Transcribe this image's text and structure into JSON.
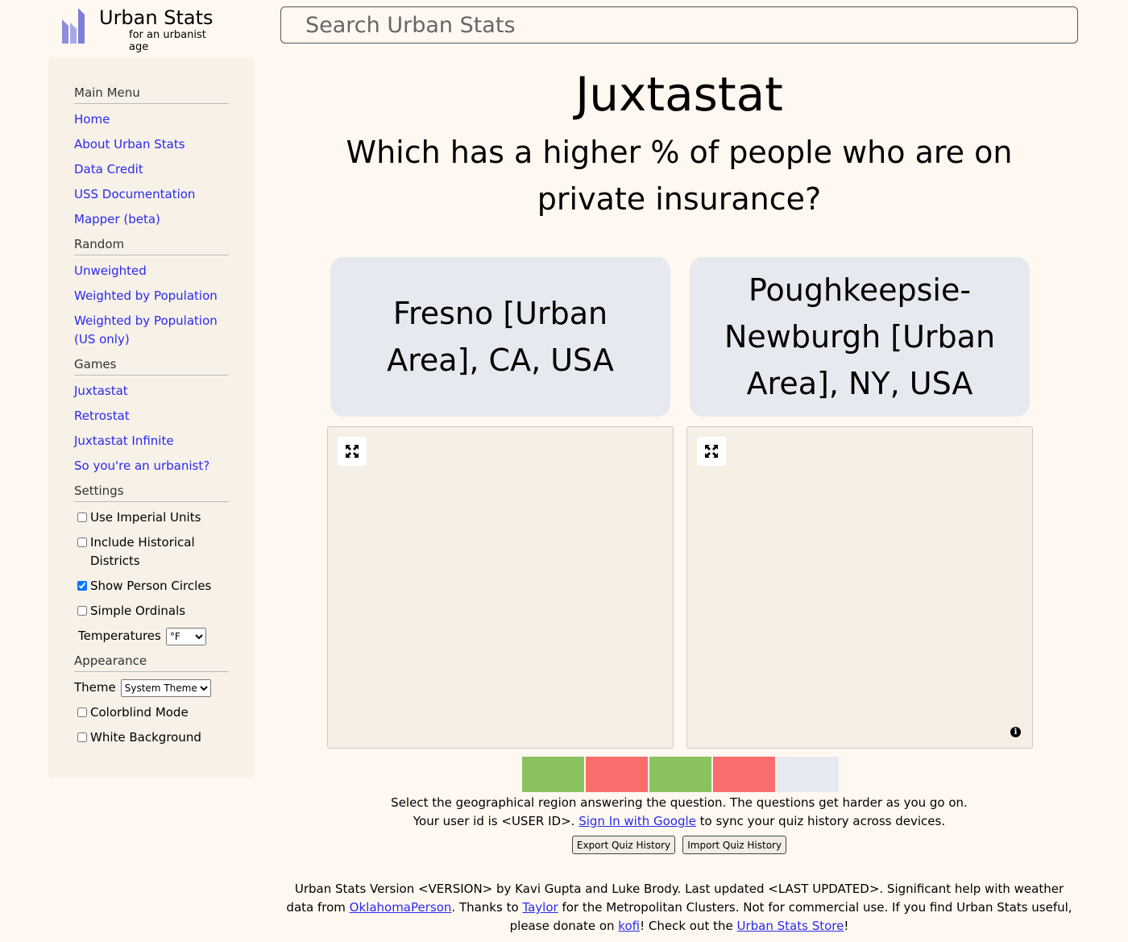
{
  "header": {
    "logo_title": "Urban Stats",
    "logo_subtitle": "for an urbanist age",
    "search_placeholder": "Search Urban Stats"
  },
  "sidebar": {
    "main_menu": {
      "heading": "Main Menu",
      "items": [
        "Home",
        "About Urban Stats",
        "Data Credit",
        "USS Documentation",
        "Mapper (beta)"
      ]
    },
    "random": {
      "heading": "Random",
      "items": [
        "Unweighted",
        "Weighted by Population",
        "Weighted by Population (US only)"
      ]
    },
    "games": {
      "heading": "Games",
      "items": [
        "Juxtastat",
        "Retrostat",
        "Juxtastat Infinite",
        "So you're an urbanist?"
      ]
    },
    "settings": {
      "heading": "Settings",
      "imperial": "Use Imperial Units",
      "historical": "Include Historical Districts",
      "person_circles": "Show Person Circles",
      "simple_ordinals": "Simple Ordinals",
      "temperatures_label": "Temperatures",
      "temperatures_value": "°F"
    },
    "appearance": {
      "heading": "Appearance",
      "theme_label": "Theme",
      "theme_value": "System Theme",
      "colorblind": "Colorblind Mode",
      "white_bg": "White Background"
    }
  },
  "main": {
    "title": "Juxtastat",
    "question": "Which has a higher % of people who are on private insurance?",
    "choice_a": "Fresno [Urban Area], CA, USA",
    "choice_b": "Poughkeepsie-Newburgh [Urban Area], NY, USA",
    "info_glyph": "i",
    "progress": [
      {
        "result": "correct",
        "color": "#8ac35e"
      },
      {
        "result": "incorrect",
        "color": "#f96d6d"
      },
      {
        "result": "correct",
        "color": "#8ac35e"
      },
      {
        "result": "incorrect",
        "color": "#f96d6d"
      },
      {
        "result": "pending",
        "color": "#e6e9ef"
      }
    ],
    "instruction": "Select the geographical region answering the question. The questions get harder as you go on.",
    "user_id_prefix": "Your user id is <USER ID>. ",
    "sign_in_link": "Sign In with Google",
    "user_id_suffix": " to sync your quiz history across devices.",
    "export_button": "Export Quiz History",
    "import_button": "Import Quiz History"
  },
  "footer": {
    "text1": "Urban Stats Version <VERSION> by Kavi Gupta and Luke Brody. Last updated <LAST UPDATED>. Significant help with weather data from ",
    "link_oklahoma": "OklahomaPerson",
    "text2": ". Thanks to ",
    "link_taylor": "Taylor",
    "text3": " for the Metropolitan Clusters. Not for commercial use. If you find Urban Stats useful, please donate on ",
    "link_kofi": "kofi",
    "text4": "! Check out the ",
    "link_store": "Urban Stats Store",
    "text5": "!"
  }
}
